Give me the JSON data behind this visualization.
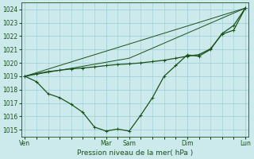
{
  "xlabel": "Pression niveau de la mer( hPa )",
  "background_color": "#cce9ec",
  "grid_color": "#99cdd4",
  "line_color_dark": "#1a5218",
  "ylim": [
    1014.5,
    1024.5
  ],
  "yticks": [
    1015,
    1016,
    1017,
    1018,
    1019,
    1020,
    1021,
    1022,
    1023,
    1024
  ],
  "day_labels": [
    "Ven",
    "Mar",
    "Sam",
    "Dim",
    "Lun"
  ],
  "day_positions": [
    0,
    7,
    9,
    14,
    19
  ],
  "xlim": [
    -0.3,
    19.3
  ],
  "series1_x": [
    0,
    1,
    2,
    3,
    4,
    5,
    6,
    7,
    8,
    9,
    10,
    11,
    12,
    13,
    14,
    15,
    16,
    17,
    18,
    19
  ],
  "series1_y": [
    1019.0,
    1018.6,
    1017.7,
    1017.4,
    1016.9,
    1016.3,
    1015.2,
    1014.9,
    1015.05,
    1014.9,
    1016.1,
    1017.4,
    1019.0,
    1019.8,
    1020.6,
    1020.5,
    1021.0,
    1022.2,
    1022.8,
    1024.1
  ],
  "series2_x": [
    0,
    1,
    2,
    3,
    4,
    5,
    6,
    7,
    8,
    9,
    10,
    11,
    12,
    13,
    14,
    15,
    16,
    17,
    18,
    19
  ],
  "series2_y": [
    1019.0,
    1019.2,
    1019.35,
    1019.45,
    1019.55,
    1019.62,
    1019.7,
    1019.8,
    1019.88,
    1019.93,
    1020.0,
    1020.1,
    1020.2,
    1020.35,
    1020.5,
    1020.62,
    1021.05,
    1022.15,
    1022.45,
    1024.1
  ],
  "series3_x": [
    0,
    9,
    19
  ],
  "series3_y": [
    1019.0,
    1020.35,
    1024.1
  ],
  "series4_x": [
    0,
    19
  ],
  "series4_y": [
    1019.0,
    1024.1
  ]
}
